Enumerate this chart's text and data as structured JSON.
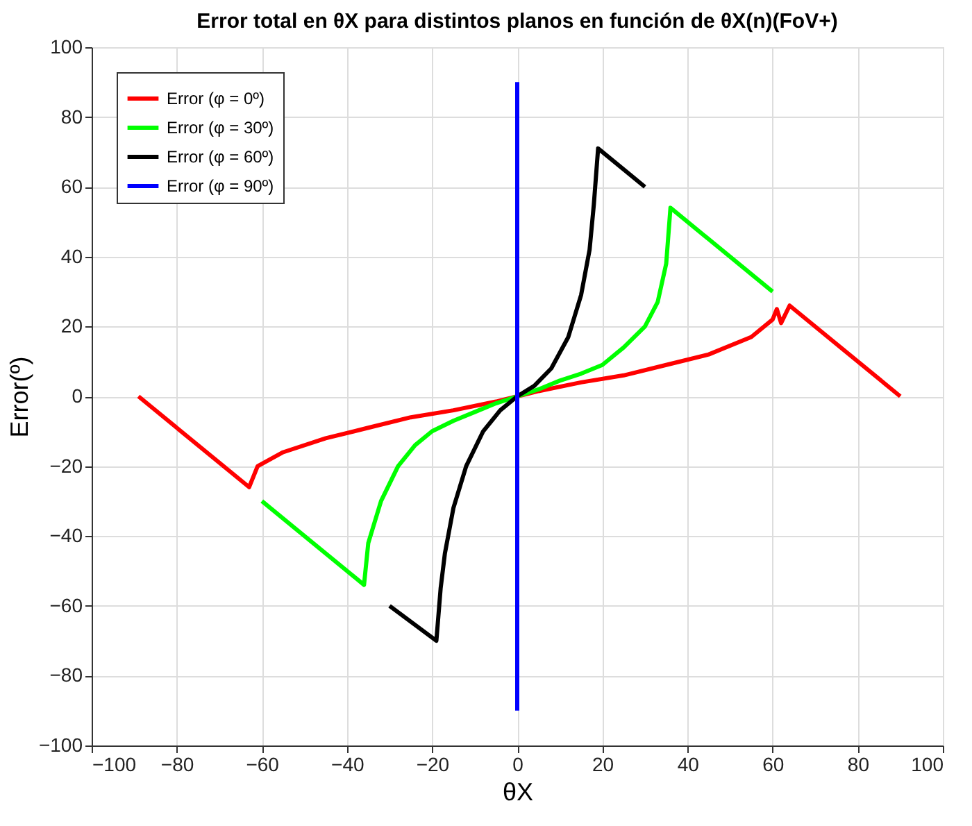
{
  "chart_data": {
    "type": "line",
    "title": "Error total en θX para distintos planos en función de θX(n)(FoV+)",
    "xlabel": "θX",
    "ylabel": "Error(º)",
    "xlim": [
      -100,
      100
    ],
    "xticks": [
      -100,
      -80,
      -60,
      -40,
      -20,
      0,
      20,
      40,
      60,
      80,
      100
    ],
    "ylim": [
      -100,
      100
    ],
    "yticks": [
      -100,
      -80,
      -60,
      -40,
      -20,
      0,
      20,
      40,
      60,
      80,
      100
    ],
    "grid": true,
    "legend": "top left",
    "marker": "none",
    "line_style": "solid",
    "series": [
      {
        "name": "Error (φ = 0º)",
        "color": "#ff0000",
        "x": [
          -89,
          -63,
          -61,
          -55,
          -45,
          -35,
          -25,
          -15,
          -5,
          0,
          5,
          15,
          25,
          35,
          45,
          55,
          60,
          61,
          62,
          64,
          90
        ],
        "values": [
          0,
          -26,
          -20,
          -16,
          -12,
          -9,
          -6,
          -4,
          -1.5,
          0,
          1.5,
          4,
          6,
          9,
          12,
          17,
          22,
          25,
          21,
          26,
          0
        ]
      },
      {
        "name": "Error (φ = 30º)",
        "color": "#00ff00",
        "x": [
          -60,
          -36,
          -35,
          -32,
          -28,
          -24,
          -20,
          -15,
          -10,
          -5,
          0,
          5,
          10,
          15,
          20,
          25,
          30,
          33,
          35,
          36,
          60
        ],
        "values": [
          -30,
          -54,
          -42,
          -30,
          -20,
          -14,
          -10,
          -7,
          -4.5,
          -2,
          0,
          2,
          4.5,
          6.5,
          9,
          14,
          20,
          27,
          38,
          54,
          30
        ]
      },
      {
        "name": "Error (φ = 60º)",
        "color": "#000000",
        "x": [
          -30,
          -19,
          -18,
          -17,
          -15,
          -12,
          -8,
          -4,
          0,
          4,
          8,
          12,
          15,
          17,
          18,
          19,
          30
        ],
        "values": [
          -60,
          -70,
          -55,
          -45,
          -32,
          -20,
          -10,
          -4,
          0,
          3,
          8,
          17,
          29,
          42,
          55,
          71,
          60
        ]
      },
      {
        "name": "Error (φ = 90º)",
        "color": "#0000ff",
        "x": [
          0,
          0
        ],
        "values": [
          -90,
          90
        ]
      }
    ]
  }
}
